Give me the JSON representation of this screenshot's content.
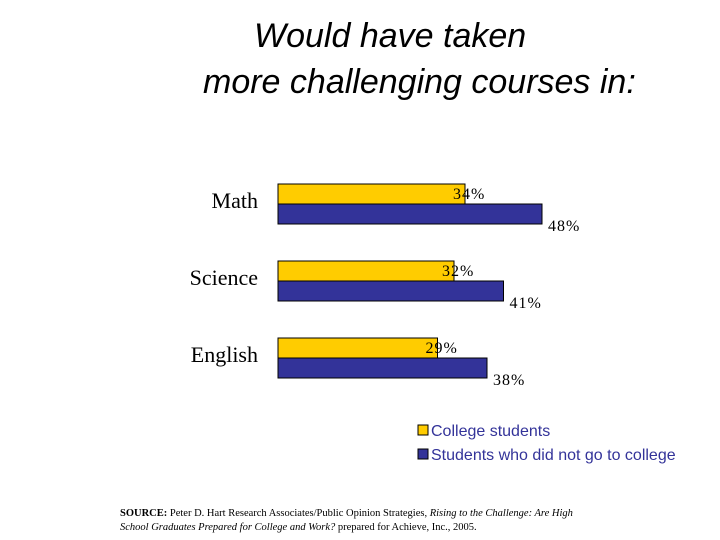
{
  "title_line1": "Would have taken",
  "title_line2": "more challenging courses in:",
  "source": {
    "label": "SOURCE:",
    "text1": "Peter D. Hart Research Associates/Public Opinion Strategies,",
    "italic": "Rising to the Challenge: Are High School Graduates Prepared for College and Work?",
    "text2": "prepared for Achieve, Inc., 2005."
  },
  "colors": {
    "college": "#FFCC00",
    "noncollege": "#333399",
    "legend_text": "#333399"
  },
  "chart_data": {
    "type": "bar",
    "orientation": "horizontal",
    "title": "Would have taken more challenging courses in:",
    "categories": [
      "Math",
      "Science",
      "English"
    ],
    "series": [
      {
        "name": "College students",
        "values": [
          34,
          32,
          29
        ],
        "labels": [
          "34%",
          "32%",
          "29%"
        ]
      },
      {
        "name": "Students who did not go to college",
        "values": [
          48,
          41,
          38
        ],
        "labels": [
          "48%",
          "41%",
          "38%"
        ]
      }
    ],
    "unit": "%",
    "xlim": [
      0,
      60
    ],
    "grid": false,
    "legend": "bottom-right"
  }
}
